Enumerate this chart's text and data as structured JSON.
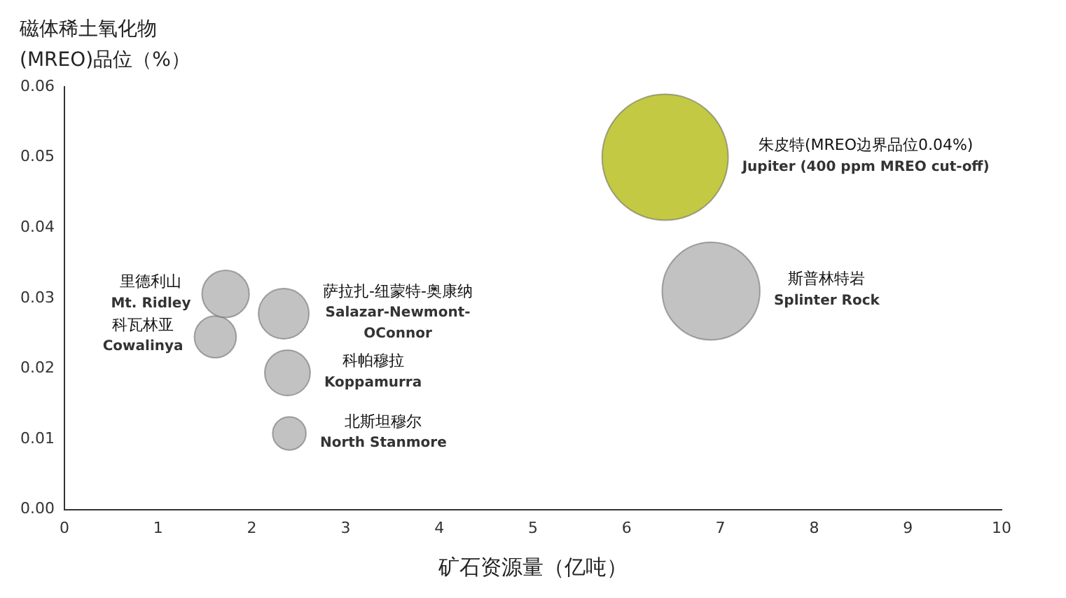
{
  "chart_data": {
    "type": "bubble",
    "ylabel": "磁体稀土氧化物(MREO)品位（%）",
    "xlabel": "矿石资源量（亿吨）",
    "series": [
      {
        "name": "朱皮特(MREO边界品位0.04%)\nJupiter (400 ppm MREO cut-off)",
        "color": "#c4c944",
        "x": [
          6.41
        ],
        "values": [
          0.05
        ],
        "sizes": [
          1
        ]
      },
      {
        "name": "斯普林特岩\nSplinter Rock",
        "color": "#c2c2c2",
        "x": [
          6.9
        ],
        "values": [
          0.031
        ],
        "sizes": [
          0.6
        ]
      },
      {
        "name": "里德利山\nMt. Ridley",
        "color": "#c2c2c2",
        "x": [
          1.72
        ],
        "values": [
          0.0306
        ],
        "sizes": [
          0.14
        ]
      },
      {
        "name": "科瓦林亚\nCowalinya",
        "color": "#c2c2c2",
        "x": [
          1.61
        ],
        "values": [
          0.0245
        ],
        "sizes": [
          0.11
        ]
      },
      {
        "name": "萨拉扎-纽蒙特-奥康纳\nSalazar-Newmont-\nOConnor",
        "color": "#c2c2c2",
        "x": [
          2.34
        ],
        "values": [
          0.0278
        ],
        "sizes": [
          0.16
        ]
      },
      {
        "name": "科帕穆拉\nKoppamurra",
        "color": "#c2c2c2",
        "x": [
          2.38
        ],
        "values": [
          0.0194
        ],
        "sizes": [
          0.13
        ]
      },
      {
        "name": "北斯坦穆尔\nNorth Stanmore",
        "color": "#c2c2c2",
        "x": [
          2.4
        ],
        "values": [
          0.0108
        ],
        "sizes": [
          0.07
        ]
      }
    ],
    "xlim": [
      0,
      10
    ],
    "xticks": [
      0,
      1,
      2,
      3,
      4,
      5,
      6,
      7,
      8,
      9,
      10
    ],
    "ylim": [
      0,
      0.06
    ],
    "yticks": [
      {
        "value": 0,
        "label": "0.00"
      },
      {
        "value": 0.01,
        "label": "0.01"
      },
      {
        "value": 0.02,
        "label": "0.02"
      },
      {
        "value": 0.03,
        "label": "0.03"
      },
      {
        "value": 0.04,
        "label": "0.04"
      },
      {
        "value": 0.05,
        "label": "0.05"
      },
      {
        "value": 0.06,
        "label": "0.06"
      }
    ],
    "grid": false,
    "legend": false,
    "marker": "circle"
  }
}
